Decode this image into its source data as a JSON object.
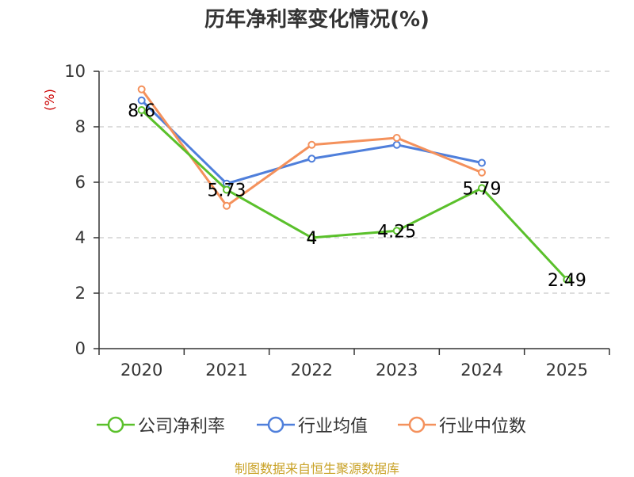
{
  "chart_data": {
    "type": "line",
    "title": "历年净利率变化情况(%)",
    "ylabel": "(%)",
    "ylim": [
      0,
      10
    ],
    "yticks": [
      0,
      2,
      4,
      6,
      8,
      10
    ],
    "categories": [
      "2020",
      "2021",
      "2022",
      "2023",
      "2024",
      "2025"
    ],
    "grid": true,
    "legend_position": "bottom",
    "series": [
      {
        "name": "公司净利率",
        "color": "#5ac02b",
        "values": [
          8.6,
          5.73,
          4,
          4.25,
          5.79,
          2.49
        ],
        "labels": [
          "8.6",
          "5.73",
          "4",
          "4.25",
          "5.79",
          "2.49"
        ]
      },
      {
        "name": "行业均值",
        "color": "#4f7fdb",
        "values": [
          8.95,
          5.95,
          6.85,
          7.35,
          6.7,
          null
        ]
      },
      {
        "name": "行业中位数",
        "color": "#f4915c",
        "values": [
          9.35,
          5.15,
          7.35,
          7.6,
          6.35,
          null
        ]
      }
    ]
  },
  "footer": {
    "source": "制图数据来自恒生聚源数据库"
  }
}
